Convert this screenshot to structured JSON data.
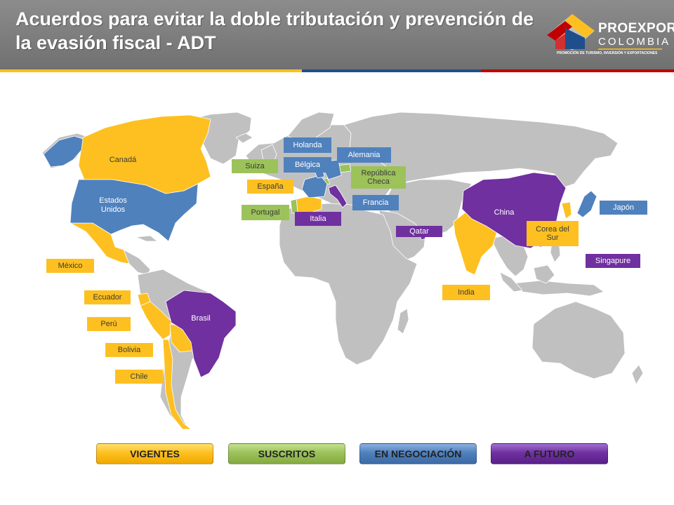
{
  "header": {
    "title": "Acuerdos para evitar la doble tributación y prevención de la evasión fiscal - ADT"
  },
  "logo": {
    "word1": "PROEXPORT",
    "word2": "COLOMBIA",
    "tagline": "PROMOCIÓN DE TURISMO, INVERSIÓN Y EXPORTACIONES"
  },
  "colors": {
    "vigentes": "#fdc020",
    "suscritos": "#9cc25a",
    "negociacion": "#4f81bd",
    "futuro": "#7030a0",
    "land": "#c0c0c0"
  },
  "map": {
    "on_map_labels": {
      "canada": "Canadá",
      "usa_line1": "Estados",
      "usa_line2": "Unidos",
      "brasil": "Brasil",
      "china": "China"
    },
    "country_labels": {
      "mexico": "México",
      "ecuador": "Ecuador",
      "peru": "Perú",
      "bolivia": "Bolivia",
      "chile": "Chile",
      "holanda": "Holanda",
      "alemania": "Alemania",
      "suiza": "Suiza",
      "belgica": "Bélgica",
      "republica_checa_line1": "República",
      "republica_checa_line2": "Checa",
      "espana": "España",
      "francia": "Francia",
      "portugal": "Portugal",
      "italia": "Italia",
      "qatar": "Qatar",
      "india": "India",
      "japon": "Japón",
      "corea_line1": "Corea del",
      "corea_line2": "Sur",
      "singapure": "Singapure"
    }
  },
  "legend": {
    "vigentes": "VIGENTES",
    "suscritos": "SUSCRITOS",
    "negociacion": "EN NEGOCIACIÓN",
    "futuro": "A FUTURO"
  }
}
